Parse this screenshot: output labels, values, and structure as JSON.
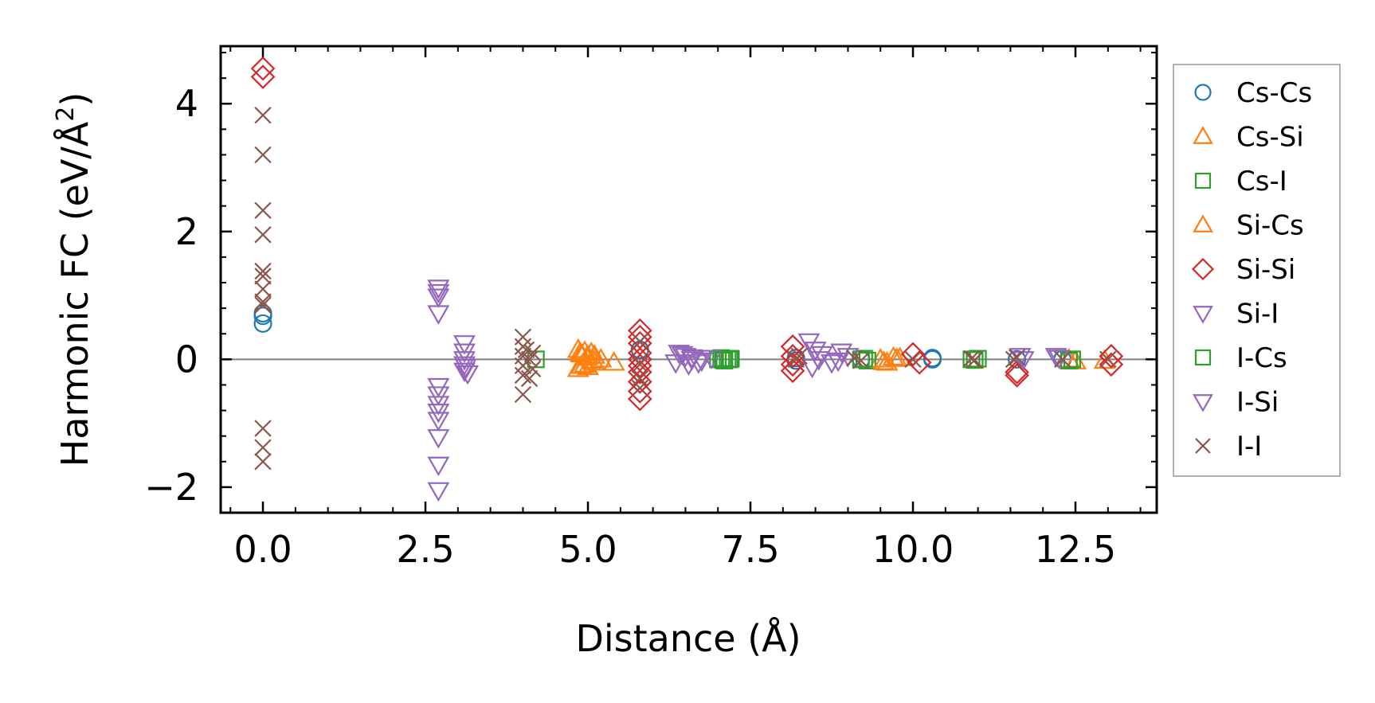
{
  "chart_data": {
    "type": "scatter",
    "title": "",
    "xlabel": "Distance (Å)",
    "ylabel_main": "Harmonic FC (eV/Å",
    "ylabel_sup": "2",
    "ylabel_close": ")",
    "xlim": [
      -0.65,
      13.75
    ],
    "ylim": [
      -2.4,
      4.9
    ],
    "xticks": [
      0.0,
      2.5,
      5.0,
      7.5,
      10.0,
      12.5
    ],
    "xtick_labels": [
      "0.0",
      "2.5",
      "5.0",
      "7.5",
      "10.0",
      "12.5"
    ],
    "yticks": [
      -2,
      0,
      2,
      4
    ],
    "ytick_labels": [
      "−2",
      "0",
      "2",
      "4"
    ],
    "zero_line": 0,
    "legend_position": "right, outside",
    "series": [
      {
        "name": "Cs-Cs",
        "marker": "circle",
        "color": "#1f77b4",
        "x": [
          0,
          0,
          0,
          5.8,
          8.2,
          8.2,
          9.2,
          10.3,
          10.3,
          11.6,
          12.3
        ],
        "y": [
          0.72,
          0.68,
          0.56,
          0.15,
          0.02,
          -0.02,
          0.0,
          0.0,
          0.02,
          0.0,
          0.0
        ]
      },
      {
        "name": "Cs-Si",
        "marker": "triangle-up",
        "color": "#ff7f0e",
        "x": [
          4.85,
          4.9,
          4.95,
          5.0,
          5.05,
          5.1,
          4.85,
          4.9,
          4.95,
          5.0,
          5.1,
          5.4,
          9.5,
          9.6,
          9.7,
          9.8,
          12.4,
          12.5
        ],
        "y": [
          0.15,
          0.08,
          0.12,
          0.05,
          0.1,
          0.06,
          -0.15,
          -0.1,
          -0.08,
          -0.12,
          -0.05,
          -0.05,
          0.0,
          -0.05,
          0.03,
          0.02,
          0.0,
          -0.03
        ]
      },
      {
        "name": "Cs-I",
        "marker": "square",
        "color": "#2ca02c",
        "x": [
          4.2,
          7.0,
          7.05,
          7.1,
          7.15,
          7.2,
          9.2,
          9.3,
          10.9,
          11.0,
          12.45
        ],
        "y": [
          0.0,
          0.0,
          0.02,
          -0.02,
          0.0,
          0.01,
          0.0,
          -0.02,
          0.0,
          0.01,
          0.0
        ]
      },
      {
        "name": "Si-Cs",
        "marker": "triangle-up",
        "color": "#ff7f0e",
        "x": [
          4.88,
          4.98,
          5.08,
          5.2,
          9.55,
          9.75,
          12.95
        ],
        "y": [
          0.1,
          0.03,
          -0.02,
          0.0,
          -0.04,
          0.01,
          -0.02
        ]
      },
      {
        "name": "Si-Si",
        "marker": "diamond",
        "color": "#d62728",
        "x": [
          0,
          0,
          5.8,
          5.8,
          5.8,
          5.8,
          5.8,
          5.8,
          5.8,
          5.8,
          5.8,
          5.8,
          8.15,
          8.15,
          8.15,
          8.15,
          10.0,
          10.1,
          11.6,
          11.6,
          13.05,
          13.05
        ],
        "y": [
          4.55,
          4.42,
          0.45,
          0.35,
          0.25,
          0.1,
          0.0,
          -0.1,
          -0.2,
          -0.35,
          -0.5,
          -0.62,
          0.2,
          0.05,
          -0.08,
          -0.18,
          0.08,
          -0.05,
          -0.25,
          -0.2,
          0.05,
          -0.08
        ]
      },
      {
        "name": "Si-I",
        "marker": "triangle-down",
        "color": "#9467bd",
        "x": [
          2.7,
          2.7,
          2.7,
          2.7,
          2.7,
          2.7,
          2.7,
          2.7,
          2.7,
          2.7,
          2.7,
          2.7,
          3.1,
          3.1,
          3.1,
          3.1,
          3.1,
          6.4,
          6.5,
          6.6,
          6.7,
          6.9,
          8.4,
          8.5,
          8.9,
          11.65,
          12.2
        ],
        "y": [
          1.12,
          1.05,
          0.98,
          0.72,
          -0.42,
          -0.55,
          -0.7,
          -0.82,
          -0.95,
          -1.22,
          -1.65,
          -2.05,
          0.25,
          0.12,
          0.0,
          -0.08,
          -0.18,
          0.1,
          0.05,
          0.0,
          -0.05,
          0.02,
          0.28,
          0.15,
          0.12,
          0.05,
          0.05
        ]
      },
      {
        "name": "I-Cs",
        "marker": "square",
        "color": "#2ca02c",
        "x": [
          7.08,
          7.18,
          9.25,
          10.95,
          12.4
        ],
        "y": [
          -0.01,
          0.0,
          0.01,
          -0.01,
          -0.02
        ]
      },
      {
        "name": "I-Si",
        "marker": "triangle-down",
        "color": "#9467bd",
        "x": [
          3.12,
          3.15,
          6.35,
          6.45,
          6.55,
          6.6,
          6.75,
          8.45,
          8.55,
          8.6,
          8.75,
          8.85,
          9.0,
          11.7,
          12.25
        ],
        "y": [
          -0.12,
          -0.22,
          -0.05,
          0.08,
          -0.08,
          0.03,
          -0.02,
          -0.12,
          0.0,
          0.08,
          -0.05,
          -0.02,
          0.05,
          0.0,
          0.02
        ]
      },
      {
        "name": "I-I",
        "marker": "x",
        "color": "#8c564b",
        "x": [
          0,
          0,
          0,
          0,
          0,
          0,
          0,
          0,
          0,
          0,
          0,
          0,
          4.0,
          4.0,
          4.0,
          4.0,
          4.0,
          4.0,
          4.05,
          4.1,
          4.1,
          4.15,
          4.15,
          5.8,
          5.8,
          5.8,
          5.8,
          8.2,
          8.25,
          9.1,
          9.2,
          10.0,
          10.9,
          10.95,
          11.55,
          11.6,
          12.3,
          13.0
        ],
        "y": [
          3.82,
          3.2,
          2.33,
          1.95,
          1.38,
          1.3,
          1.1,
          0.9,
          -1.08,
          -1.38,
          -1.6,
          0.85,
          0.35,
          0.2,
          0.05,
          -0.1,
          -0.25,
          -0.55,
          0.15,
          0.0,
          -0.3,
          0.1,
          -0.15,
          0.28,
          -0.08,
          -0.3,
          -0.45,
          0.0,
          0.05,
          0.02,
          -0.02,
          0.0,
          0.01,
          -0.01,
          0.0,
          0.03,
          0.0,
          0.0
        ]
      }
    ]
  }
}
